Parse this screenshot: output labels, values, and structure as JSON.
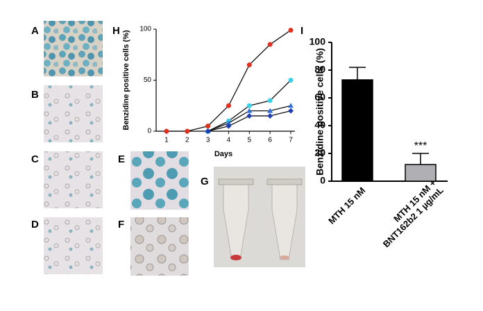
{
  "panels": {
    "A": "A",
    "B": "B",
    "C": "C",
    "D": "D",
    "E": "E",
    "F": "F",
    "G": "G",
    "H": "H",
    "I": "I"
  },
  "chart_data": [
    {
      "type": "line",
      "ylabel": "Benzidine positive cells (%)",
      "xlabel": "Days",
      "x": [
        1,
        2,
        3,
        4,
        5,
        6,
        7
      ],
      "xlim": [
        0.5,
        7
      ],
      "xticks": [
        1,
        2,
        3,
        4,
        5,
        6,
        7
      ],
      "ylim": [
        0,
        100
      ],
      "yticks": [
        0,
        50,
        100
      ],
      "series": [
        {
          "color": "#e0301e",
          "marker": "circle",
          "values": [
            0,
            0,
            5,
            25,
            65,
            85,
            99
          ]
        },
        {
          "color": "#3ad0e8",
          "marker": "circle",
          "values": [
            null,
            null,
            0,
            10,
            25,
            30,
            50
          ]
        },
        {
          "color": "#2f6fd6",
          "marker": "triangle",
          "values": [
            null,
            null,
            0,
            8,
            20,
            20,
            25
          ]
        },
        {
          "color": "#1f3fb0",
          "marker": "diamond",
          "values": [
            null,
            null,
            0,
            5,
            15,
            15,
            20
          ]
        }
      ]
    },
    {
      "type": "bar",
      "ylabel": "Benzidine positive cells (%)",
      "categories": [
        [
          "MTH 15 nM"
        ],
        [
          "MTH 15 nM +",
          "BNT162b2 1 µg/mL"
        ]
      ],
      "values": [
        73,
        12
      ],
      "errors": [
        9,
        8
      ],
      "colors": [
        "#000000",
        "#b0b0b4"
      ],
      "annotations": [
        {
          "category": 1,
          "text": "***"
        }
      ],
      "ylim": [
        0,
        100
      ],
      "yticks": [
        0,
        20,
        40,
        60,
        80,
        100
      ]
    }
  ]
}
